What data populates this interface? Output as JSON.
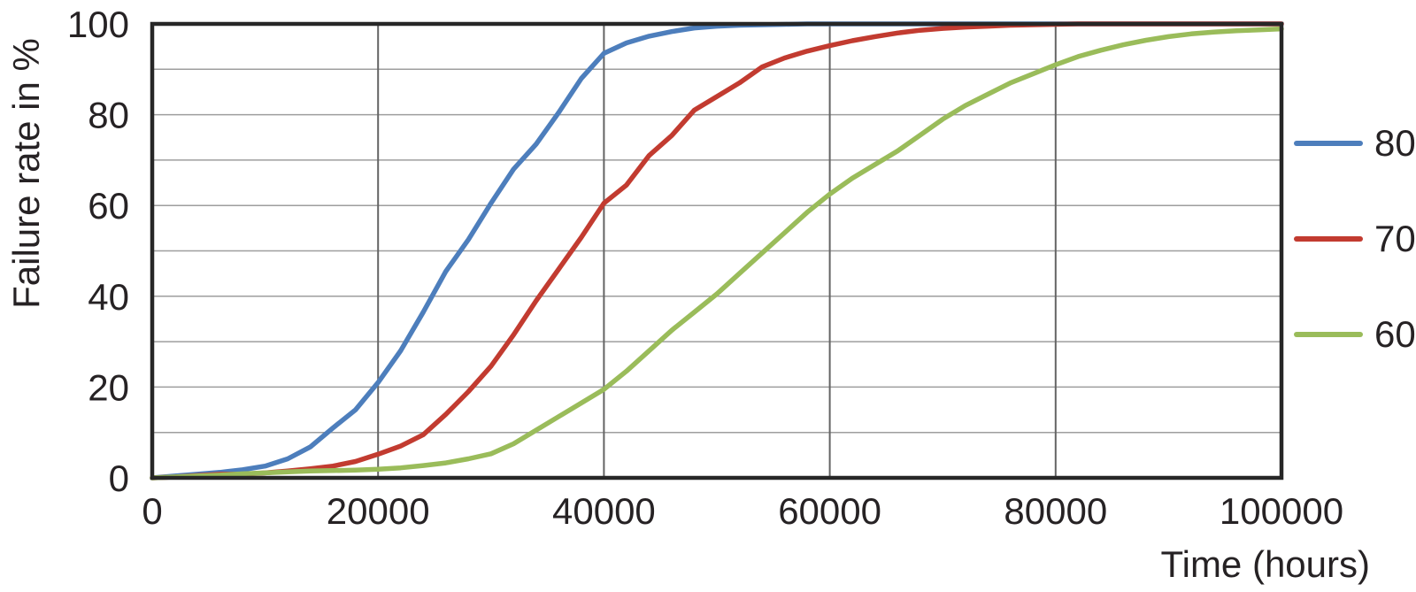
{
  "figure": {
    "background": "#ffffff"
  },
  "chart_data": {
    "type": "line",
    "title": "",
    "xlabel": "Time (hours)",
    "ylabel": "Failure rate in %",
    "xlim": [
      0,
      100000
    ],
    "ylim": [
      0,
      100
    ],
    "x_ticks": [
      0,
      20000,
      40000,
      60000,
      80000,
      100000
    ],
    "x_tick_labels": [
      "0",
      "20000",
      "40000",
      "60000",
      "80000",
      "100000"
    ],
    "y_ticks_labeled": [
      0,
      20,
      40,
      60,
      80,
      100
    ],
    "y_gridline_step": 10,
    "grid": true,
    "legend_position": "right-outside",
    "x_step": 2000,
    "series": [
      {
        "name": "80",
        "color": "#4d7ebc",
        "values": [
          0,
          0.4,
          0.8,
          1.2,
          1.8,
          2.6,
          4.2,
          6.8,
          11,
          15,
          21,
          28,
          36.5,
          45.5,
          52.5,
          60.5,
          68,
          73.5,
          80.5,
          88,
          93.5,
          95.8,
          97.3,
          98.3,
          99.1,
          99.5,
          99.7,
          99.8,
          99.9,
          100,
          100,
          100,
          100,
          100,
          100,
          100,
          100,
          100,
          100,
          100,
          100,
          100,
          100,
          100,
          100,
          100,
          100,
          100,
          100,
          100,
          100
        ]
      },
      {
        "name": "70",
        "color": "#c23b30",
        "values": [
          0,
          0.2,
          0.5,
          0.8,
          0.8,
          1.1,
          1.5,
          2,
          2.6,
          3.6,
          5.2,
          7,
          9.5,
          14,
          19,
          24.6,
          31.5,
          39,
          46,
          53,
          60.5,
          64.5,
          71,
          75.4,
          81,
          84,
          87,
          90.5,
          92.5,
          94,
          95.2,
          96.3,
          97.2,
          98,
          98.6,
          99,
          99.3,
          99.5,
          99.7,
          99.8,
          99.9,
          100,
          100,
          100,
          100,
          100,
          100,
          100,
          100,
          100,
          100
        ]
      },
      {
        "name": "60",
        "color": "#9abc5a",
        "values": [
          0,
          0.2,
          0.4,
          0.6,
          0.9,
          1.1,
          1.3,
          1.5,
          1.6,
          1.7,
          1.9,
          2.2,
          2.7,
          3.3,
          4.2,
          5.3,
          7.5,
          10.5,
          13.5,
          16.5,
          19.5,
          23.5,
          28,
          32.5,
          36.5,
          40.5,
          45,
          49.5,
          54,
          58.5,
          62.5,
          66,
          69,
          72,
          75.5,
          79,
          82,
          84.5,
          87,
          89,
          91,
          92.8,
          94.2,
          95.4,
          96.4,
          97.2,
          97.8,
          98.2,
          98.5,
          98.7,
          98.9
        ]
      }
    ],
    "style": {
      "frame_color": "#272727",
      "grid_h_color": "#9e9e9e",
      "grid_v_color": "#646464",
      "text_color": "#262224",
      "line_width": 5.5
    }
  },
  "legend": {
    "items": [
      {
        "label": "80"
      },
      {
        "label": "70"
      },
      {
        "label": "60"
      }
    ]
  }
}
